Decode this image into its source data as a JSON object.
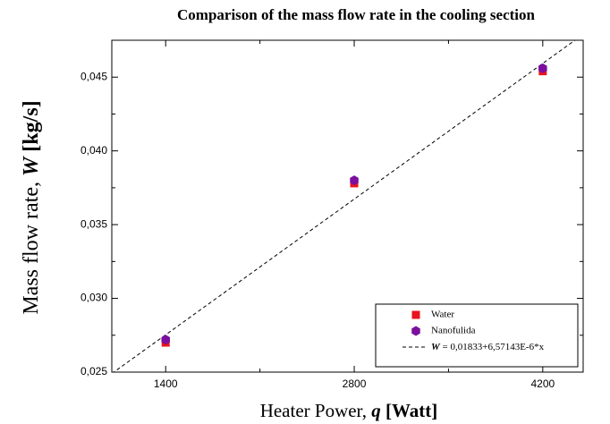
{
  "chart_data": {
    "type": "scatter",
    "title": "Comparison of the mass flow rate in the cooling section",
    "xlabel": [
      "Heater Power, ",
      "q",
      " [Watt]"
    ],
    "ylabel": [
      "Mass flow rate, ",
      "W",
      " [kg/s]"
    ],
    "xlim": [
      1000,
      4500
    ],
    "ylim": [
      0.025,
      0.0475
    ],
    "xticks": [
      1400,
      2800,
      4200
    ],
    "xminorticks": [
      2100,
      3500
    ],
    "yticks": [
      {
        "value": 0.025,
        "label": "0,025"
      },
      {
        "value": 0.03,
        "label": "0,030"
      },
      {
        "value": 0.035,
        "label": "0,035"
      },
      {
        "value": 0.04,
        "label": "0,040"
      },
      {
        "value": 0.045,
        "label": "0,045"
      }
    ],
    "yminorticks": [
      0.0275,
      0.0325,
      0.0375,
      0.0425
    ],
    "legend": "lower right",
    "series": [
      {
        "name": "Water",
        "color": "#e8141b",
        "marker": "square",
        "x": [
          1400,
          2800,
          4200
        ],
        "values": [
          0.027,
          0.0378,
          0.0454
        ]
      },
      {
        "name": "Nanofulida",
        "color": "#7b0f9e",
        "marker": "hexagon",
        "x": [
          1400,
          2800,
          4200
        ],
        "values": [
          0.0272,
          0.038,
          0.0456
        ]
      }
    ],
    "fit": {
      "symbol": "W",
      "name": " = 0,01833+6,57143E-6*x",
      "intercept": 0.01833,
      "slope": 6.57143e-06,
      "color": "#000000"
    }
  }
}
